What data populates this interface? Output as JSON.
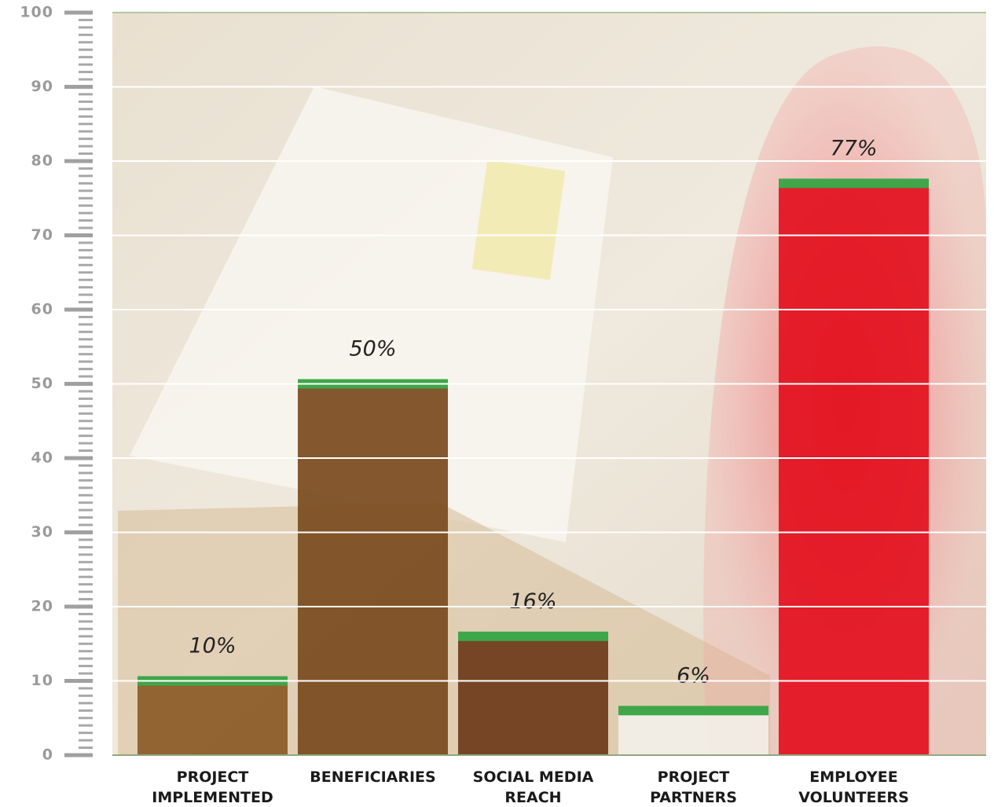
{
  "chart_data": {
    "type": "bar",
    "categories": [
      "PROJECT IMPLEMENTED",
      "BENEFICIARIES",
      "SOCIAL MEDIA REACH",
      "PROJECT PARTNERS",
      "EMPLOYEE VOLUNTEERS"
    ],
    "values": [
      10,
      50,
      16,
      6,
      77
    ],
    "value_labels": [
      "10%",
      "50%",
      "16%",
      "6%",
      "77%"
    ],
    "color": "#3fa649",
    "colors": [
      "#8a5a26",
      "#7a4a1e",
      "#6b3a1a",
      "#f2efe8",
      "#e3101e"
    ],
    "ylim": [
      0,
      100
    ],
    "yticks": [
      0,
      10,
      20,
      30,
      40,
      50,
      60,
      70,
      80,
      90,
      100
    ],
    "grid": true
  }
}
